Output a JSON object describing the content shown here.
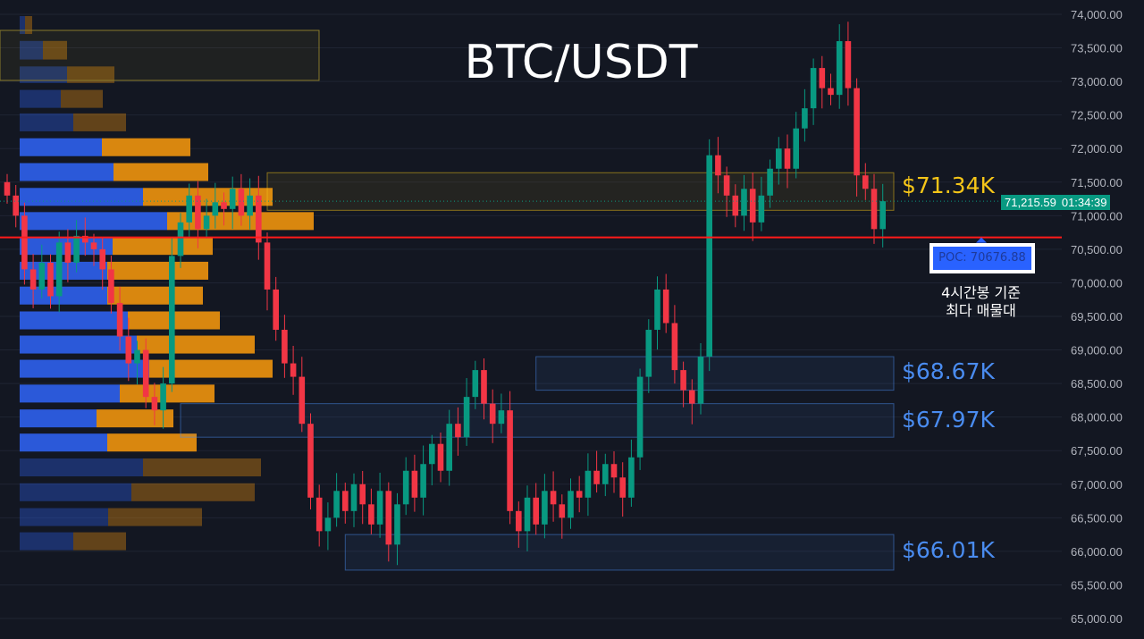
{
  "chart_data": {
    "type": "candlestick",
    "title": "BTC/USDT",
    "ylim": [
      65000,
      74000
    ],
    "y_ticks": [
      "74,000.00",
      "73,500.00",
      "73,000.00",
      "72,500.00",
      "72,000.00",
      "71,500.00",
      "71,000.00",
      "70,500.00",
      "70,000.00",
      "69,500.00",
      "69,000.00",
      "68,500.00",
      "68,000.00",
      "67,500.00",
      "67,000.00",
      "66,500.00",
      "66,000.00",
      "65,500.00",
      "65,000.00"
    ],
    "y_tick_values": [
      74000,
      73500,
      73000,
      72500,
      72000,
      71500,
      71000,
      70500,
      70000,
      69500,
      69000,
      68500,
      68000,
      67500,
      67000,
      66500,
      66000,
      65500,
      65000
    ],
    "closes": [
      71300,
      71000,
      70200,
      69900,
      70300,
      69800,
      70600,
      70300,
      70700,
      70600,
      70500,
      70200,
      69700,
      69200,
      68800,
      69000,
      68300,
      68100,
      68500,
      70400,
      70900,
      71300,
      70800,
      71000,
      71200,
      71100,
      71400,
      71000,
      71300,
      70600,
      69900,
      69300,
      68800,
      68600,
      67900,
      66800,
      66300,
      66500,
      66900,
      66600,
      67000,
      66700,
      66400,
      66900,
      66100,
      66700,
      67200,
      66800,
      67300,
      67600,
      67200,
      67900,
      67700,
      68300,
      68700,
      68200,
      67900,
      68100,
      66600,
      66300,
      66800,
      66400,
      66900,
      66700,
      66500,
      66900,
      66800,
      67200,
      67000,
      67300,
      67100,
      66800,
      67400,
      68600,
      69300,
      69900,
      69400,
      68700,
      68400,
      68200,
      68900,
      71900,
      71600,
      71300,
      71000,
      71400,
      70900,
      71300,
      71700,
      72000,
      71700,
      72300,
      72600,
      73200,
      72900,
      72800,
      73600,
      72900,
      71600,
      71400,
      70800,
      71215.59
    ],
    "first_open": 71500,
    "up_color": "#089981",
    "down_color": "#f23645",
    "current_price": "71,215.59",
    "countdown": "01:34:39",
    "poc": {
      "value": 70676.88,
      "label": "POC: 70676.88",
      "color": "#ff1a1a"
    },
    "annotation": [
      "4시간봉 기준",
      "최다 매물대"
    ],
    "volume_profile": {
      "buy_color": "#2b59d9",
      "sell_color": "#d9870f",
      "rows": [
        {
          "top": 74000,
          "bottom": 73680,
          "buy": 6,
          "sell": 8,
          "faint": true
        },
        {
          "top": 73630,
          "bottom": 73300,
          "buy": 26,
          "sell": 27,
          "faint": true
        },
        {
          "top": 73250,
          "bottom": 72950,
          "buy": 53,
          "sell": 53,
          "faint": true
        },
        {
          "top": 72900,
          "bottom": 72580,
          "buy": 46,
          "sell": 47,
          "faint": true
        },
        {
          "top": 72550,
          "bottom": 72230,
          "buy": 60,
          "sell": 59,
          "faint": true
        },
        {
          "top": 72180,
          "bottom": 71860,
          "buy": 92,
          "sell": 99
        },
        {
          "top": 71810,
          "bottom": 71490,
          "buy": 105,
          "sell": 106
        },
        {
          "top": 71440,
          "bottom": 71120,
          "buy": 138,
          "sell": 145
        },
        {
          "top": 71080,
          "bottom": 70760,
          "buy": 165,
          "sell": 164
        },
        {
          "top": 70710,
          "bottom": 70390,
          "buy": 104,
          "sell": 112
        },
        {
          "top": 70340,
          "bottom": 70020,
          "buy": 98,
          "sell": 113
        },
        {
          "top": 69970,
          "bottom": 69650,
          "buy": 98,
          "sell": 107
        },
        {
          "top": 69600,
          "bottom": 69280,
          "buy": 121,
          "sell": 103
        },
        {
          "top": 69240,
          "bottom": 68920,
          "buy": 131,
          "sell": 132
        },
        {
          "top": 68880,
          "bottom": 68560,
          "buy": 145,
          "sell": 138
        },
        {
          "top": 68510,
          "bottom": 68190,
          "buy": 112,
          "sell": 106
        },
        {
          "top": 68140,
          "bottom": 67820,
          "buy": 86,
          "sell": 86
        },
        {
          "top": 67780,
          "bottom": 67460,
          "buy": 98,
          "sell": 100
        },
        {
          "top": 67410,
          "bottom": 67090,
          "buy": 138,
          "sell": 132,
          "faint": true
        },
        {
          "top": 67040,
          "bottom": 66720,
          "buy": 125,
          "sell": 138,
          "faint": true
        },
        {
          "top": 66670,
          "bottom": 66350,
          "buy": 99,
          "sell": 105,
          "faint": true
        },
        {
          "top": 66310,
          "bottom": 65990,
          "buy": 60,
          "sell": 59,
          "faint": true
        }
      ]
    },
    "zones": [
      {
        "label": "$71.34K",
        "top": 71640,
        "bottom": 71080,
        "color": "#f5c518",
        "from_candle": 30
      },
      {
        "label": "$68.67K",
        "top": 68900,
        "bottom": 68400,
        "color": "#4a8cf0",
        "from_candle": 61
      },
      {
        "label": "$67.97K",
        "top": 68200,
        "bottom": 67700,
        "color": "#4a8cf0",
        "from_candle": 20
      },
      {
        "label": "$66.01K",
        "top": 66250,
        "bottom": 65720,
        "color": "#4a8cf0",
        "from_candle": 39
      }
    ]
  }
}
